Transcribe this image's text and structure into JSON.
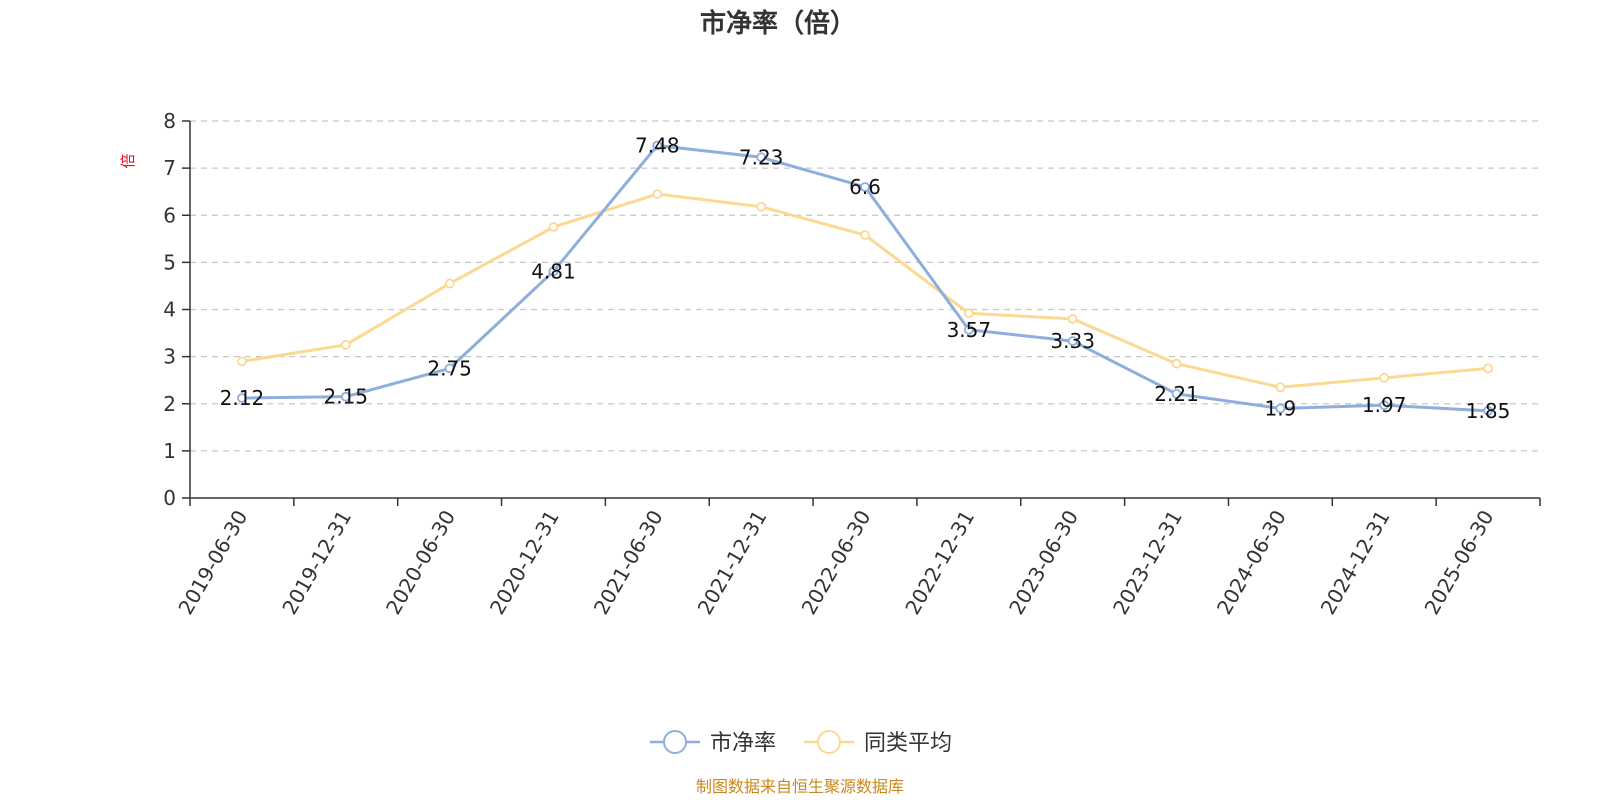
{
  "chart_data": {
    "type": "line",
    "title": "市净率（倍）",
    "ylabel": "倍",
    "ylim": [
      0,
      8
    ],
    "yticks": [
      0,
      1,
      2,
      3,
      4,
      5,
      6,
      7,
      8
    ],
    "grid": true,
    "legend_position": "bottom",
    "categories": [
      "2019-06-30",
      "2019-12-31",
      "2020-06-30",
      "2020-12-31",
      "2021-06-30",
      "2021-12-31",
      "2022-06-30",
      "2022-12-31",
      "2023-06-30",
      "2023-12-31",
      "2024-06-30",
      "2024-12-31",
      "2025-06-30"
    ],
    "series": [
      {
        "name": "市净率",
        "color": "#8eaedb",
        "show_labels": true,
        "values": [
          2.12,
          2.15,
          2.75,
          4.81,
          7.48,
          7.23,
          6.6,
          3.57,
          3.33,
          2.21,
          1.9,
          1.97,
          1.85
        ],
        "labels": [
          "2.12",
          "2.15",
          "2.75",
          "4.81",
          "7.48",
          "7.23",
          "6.6",
          "3.57",
          "3.33",
          "2.21",
          "1.9",
          "1.97",
          "1.85"
        ]
      },
      {
        "name": "同类平均",
        "color": "#fbd993",
        "show_labels": false,
        "values": [
          2.9,
          3.25,
          4.55,
          5.75,
          6.45,
          6.18,
          5.58,
          3.92,
          3.8,
          2.85,
          2.35,
          2.55,
          2.75
        ]
      }
    ]
  },
  "source_note": "制图数据来自恒生聚源数据库"
}
